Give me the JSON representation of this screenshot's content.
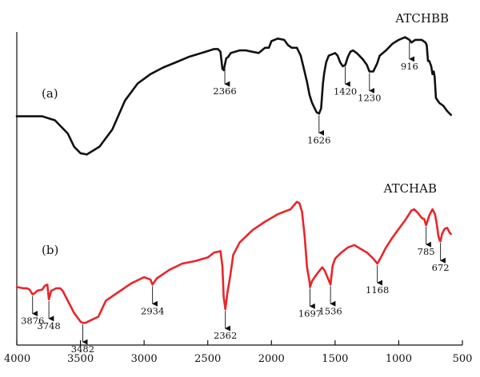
{
  "chart_data": {
    "type": "line",
    "xlim": [
      4000,
      500
    ],
    "x_reversed": true,
    "x_ticks": [
      4000,
      3500,
      3000,
      2500,
      2000,
      1500,
      1000,
      500
    ],
    "x_tick_labels": [
      "4000",
      "3500",
      "3000",
      "2500",
      "2000",
      "1500",
      "1000",
      "500"
    ],
    "y_axis": "no ticks or labels",
    "grid": false,
    "series": [
      {
        "name": "ATCHBB",
        "panel_label": "(a)",
        "color": "#111111",
        "points": [
          [
            4000,
            66
          ],
          [
            3800,
            66
          ],
          [
            3700,
            63
          ],
          [
            3600,
            53
          ],
          [
            3550,
            43
          ],
          [
            3500,
            38
          ],
          [
            3450,
            37
          ],
          [
            3350,
            43
          ],
          [
            3250,
            56
          ],
          [
            3150,
            78
          ],
          [
            3050,
            91
          ],
          [
            2950,
            98
          ],
          [
            2850,
            103
          ],
          [
            2750,
            107
          ],
          [
            2650,
            111
          ],
          [
            2550,
            114
          ],
          [
            2450,
            117
          ],
          [
            2420,
            117
          ],
          [
            2400,
            115
          ],
          [
            2385,
            102
          ],
          [
            2375,
            101
          ],
          [
            2355,
            110
          ],
          [
            2340,
            111
          ],
          [
            2320,
            114
          ],
          [
            2250,
            116
          ],
          [
            2200,
            116
          ],
          [
            2150,
            115
          ],
          [
            2100,
            114
          ],
          [
            2050,
            118
          ],
          [
            2020,
            118
          ],
          [
            2000,
            123
          ],
          [
            1950,
            125
          ],
          [
            1900,
            124
          ],
          [
            1870,
            120
          ],
          [
            1840,
            118
          ],
          [
            1800,
            118
          ],
          [
            1770,
            112
          ],
          [
            1750,
            104
          ],
          [
            1720,
            92
          ],
          [
            1700,
            82
          ],
          [
            1680,
            76
          ],
          [
            1660,
            72
          ],
          [
            1645,
            69
          ],
          [
            1626,
            68
          ],
          [
            1610,
            72
          ],
          [
            1595,
            91
          ],
          [
            1585,
            99
          ],
          [
            1570,
            107
          ],
          [
            1550,
            112
          ],
          [
            1500,
            114
          ],
          [
            1480,
            112
          ],
          [
            1460,
            107
          ],
          [
            1440,
            104
          ],
          [
            1420,
            105
          ],
          [
            1400,
            111
          ],
          [
            1380,
            115
          ],
          [
            1360,
            116
          ],
          [
            1330,
            114
          ],
          [
            1300,
            111
          ],
          [
            1280,
            109
          ],
          [
            1250,
            105
          ],
          [
            1230,
            100
          ],
          [
            1200,
            100
          ],
          [
            1170,
            106
          ],
          [
            1150,
            112
          ],
          [
            1100,
            116
          ],
          [
            1050,
            121
          ],
          [
            1000,
            124
          ],
          [
            950,
            126
          ],
          [
            916,
            124
          ],
          [
            900,
            122
          ],
          [
            870,
            124
          ],
          [
            820,
            124
          ],
          [
            790,
            122
          ],
          [
            780,
            120
          ],
          [
            775,
            114
          ],
          [
            770,
            108
          ],
          [
            760,
            108
          ],
          [
            745,
            104
          ],
          [
            735,
            98
          ],
          [
            725,
            100
          ],
          [
            718,
            96
          ],
          [
            708,
            80
          ],
          [
            695,
            78
          ],
          [
            680,
            76
          ],
          [
            650,
            74
          ],
          [
            620,
            70
          ],
          [
            590,
            67
          ]
        ],
        "annotations": [
          {
            "x": 2366,
            "label": "2366"
          },
          {
            "x": 1626,
            "label": "1626"
          },
          {
            "x": 1420,
            "label": "1420"
          },
          {
            "x": 1230,
            "label": "1230"
          },
          {
            "x": 916,
            "label": "916"
          }
        ]
      },
      {
        "name": "ATCHAB",
        "panel_label": "(b)",
        "color": "#e8262a",
        "points": [
          [
            4000,
            56
          ],
          [
            3950,
            55
          ],
          [
            3920,
            55
          ],
          [
            3900,
            54
          ],
          [
            3876,
            50
          ],
          [
            3860,
            51
          ],
          [
            3840,
            53
          ],
          [
            3800,
            54
          ],
          [
            3780,
            57
          ],
          [
            3760,
            58
          ],
          [
            3748,
            46
          ],
          [
            3730,
            53
          ],
          [
            3710,
            54
          ],
          [
            3690,
            55
          ],
          [
            3660,
            55
          ],
          [
            3640,
            53
          ],
          [
            3600,
            45
          ],
          [
            3550,
            35
          ],
          [
            3500,
            28
          ],
          [
            3482,
            27
          ],
          [
            3460,
            27
          ],
          [
            3420,
            29
          ],
          [
            3360,
            32
          ],
          [
            3300,
            45
          ],
          [
            3200,
            52
          ],
          [
            3100,
            59
          ],
          [
            3000,
            64
          ],
          [
            2950,
            62
          ],
          [
            2934,
            58
          ],
          [
            2900,
            63
          ],
          [
            2800,
            70
          ],
          [
            2700,
            75
          ],
          [
            2600,
            77
          ],
          [
            2500,
            80
          ],
          [
            2450,
            84
          ],
          [
            2400,
            85
          ],
          [
            2385,
            73
          ],
          [
            2375,
            48
          ],
          [
            2362,
            38
          ],
          [
            2345,
            52
          ],
          [
            2325,
            64
          ],
          [
            2300,
            82
          ],
          [
            2250,
            92
          ],
          [
            2150,
            102
          ],
          [
            2050,
            109
          ],
          [
            1950,
            115
          ],
          [
            1850,
            119
          ],
          [
            1800,
            125
          ],
          [
            1780,
            124
          ],
          [
            1760,
            117
          ],
          [
            1740,
            98
          ],
          [
            1720,
            72
          ],
          [
            1700,
            60
          ],
          [
            1697,
            56
          ],
          [
            1680,
            61
          ],
          [
            1640,
            67
          ],
          [
            1600,
            72
          ],
          [
            1580,
            69
          ],
          [
            1560,
            64
          ],
          [
            1536,
            58
          ],
          [
            1520,
            73
          ],
          [
            1500,
            79
          ],
          [
            1480,
            81
          ],
          [
            1450,
            84
          ],
          [
            1400,
            88
          ],
          [
            1350,
            90
          ],
          [
            1300,
            87
          ],
          [
            1250,
            84
          ],
          [
            1200,
            79
          ],
          [
            1168,
            75
          ],
          [
            1140,
            80
          ],
          [
            1100,
            88
          ],
          [
            1050,
            96
          ],
          [
            1000,
            103
          ],
          [
            950,
            110
          ],
          [
            900,
            118
          ],
          [
            880,
            119
          ],
          [
            850,
            116
          ],
          [
            820,
            112
          ],
          [
            800,
            111
          ],
          [
            785,
            106
          ],
          [
            760,
            114
          ],
          [
            735,
            119
          ],
          [
            715,
            115
          ],
          [
            700,
            106
          ],
          [
            690,
            98
          ],
          [
            680,
            94
          ],
          [
            672,
            93
          ],
          [
            660,
            99
          ],
          [
            640,
            103
          ],
          [
            620,
            104
          ],
          [
            600,
            100
          ],
          [
            590,
            99
          ]
        ],
        "annotations": [
          {
            "x": 3876,
            "label": "3876"
          },
          {
            "x": 3748,
            "label": "3748"
          },
          {
            "x": 3482,
            "label": "3482"
          },
          {
            "x": 2934,
            "label": "2934"
          },
          {
            "x": 2362,
            "label": "2362"
          },
          {
            "x": 1697,
            "label": "1697"
          },
          {
            "x": 1536,
            "label": "1536"
          },
          {
            "x": 1168,
            "label": "1168"
          },
          {
            "x": 785,
            "label": "785"
          },
          {
            "x": 672,
            "label": "672"
          }
        ]
      }
    ]
  }
}
